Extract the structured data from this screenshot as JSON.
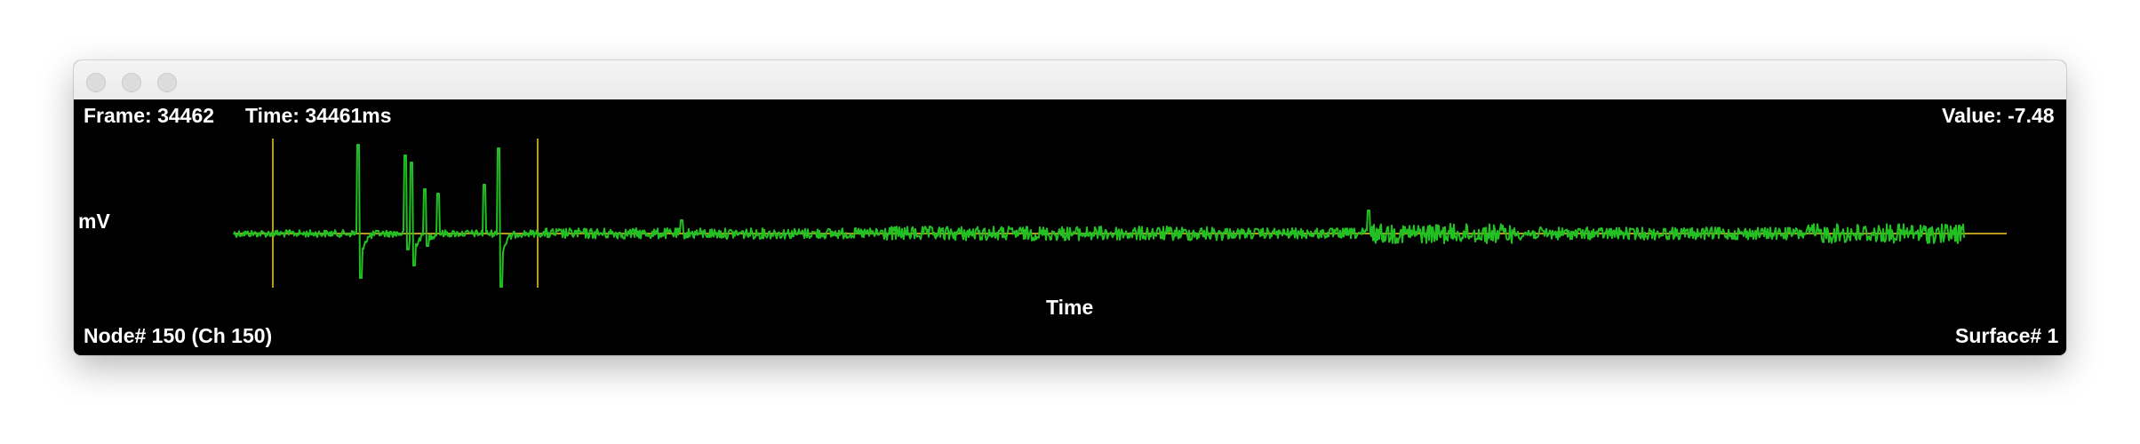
{
  "window": {
    "controls": [
      "close-button",
      "minimize-button",
      "zoom-button"
    ]
  },
  "header": {
    "frame_label": "Frame: 34462",
    "time_label": "Time: 34461ms",
    "value_label": "Value: -7.48"
  },
  "axes": {
    "y_label": "mV",
    "x_label": "Time"
  },
  "footer": {
    "node_label": "Node# 150 (Ch 150)",
    "surface_label": "Surface# 1"
  },
  "colors": {
    "background": "#000000",
    "trace": "#22c022",
    "baseline": "#b99a1c",
    "markers": "#b99a1c",
    "text": "#ffffff"
  }
}
